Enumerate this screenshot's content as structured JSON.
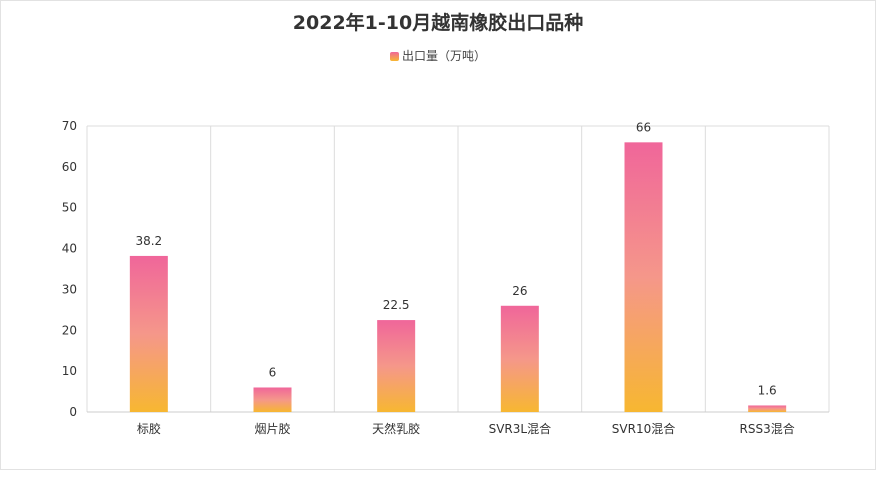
{
  "chart_data": {
    "type": "bar",
    "title": "2022年1-10月越南橡胶出口品种",
    "categories": [
      "标胶",
      "烟片胶",
      "天然乳胶",
      "SVR3L混合",
      "SVR10混合",
      "RSS3混合"
    ],
    "series": [
      {
        "name": "出口量（万吨）",
        "values": [
          38.2,
          6,
          22.5,
          26,
          66,
          1.6
        ],
        "labels": [
          "38.2",
          "6",
          "22.5",
          "26",
          "66",
          "1.6"
        ]
      }
    ],
    "yticks": [
      "0",
      "10",
      "20",
      "30",
      "40",
      "50",
      "60",
      "70"
    ],
    "ylim": [
      0,
      70
    ],
    "legend_position": "top-center",
    "grid": "vertical",
    "colors": {
      "gradient_top": "#f0669a",
      "gradient_mid": "#f5978a",
      "gradient_bottom": "#f7b731",
      "grid": "#dcdcdc",
      "text": "#333333"
    }
  }
}
